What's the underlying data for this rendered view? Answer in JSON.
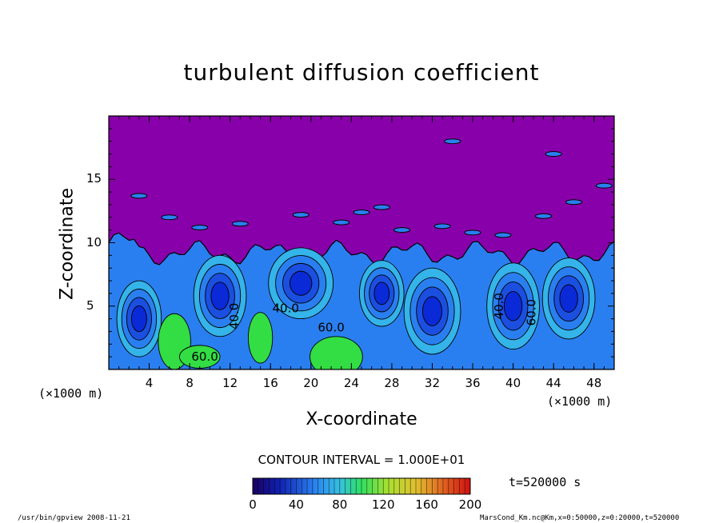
{
  "chart_data": {
    "type": "heatmap",
    "title": "turbulent diffusion coefficient",
    "xlabel": "X-coordinate",
    "ylabel": "Z-coordinate",
    "x_unit": "(×1000 m)",
    "x_unit_right": "(×1000 m)",
    "xlim": [
      0,
      50
    ],
    "ylim": [
      0,
      20
    ],
    "x_ticks": [
      4,
      8,
      12,
      16,
      20,
      24,
      28,
      32,
      36,
      40,
      44,
      48
    ],
    "y_ticks": [
      5,
      10,
      15
    ],
    "contour_interval_text": "CONTOUR INTERVAL = 1.000E+01",
    "colorbar": {
      "min": 0,
      "max": 200,
      "ticks": [
        0,
        40,
        80,
        120,
        160,
        200
      ]
    },
    "contour_labels": [
      {
        "text": "40.0",
        "x": 17.5,
        "z": 4.5,
        "rotate": 0
      },
      {
        "text": "40.0",
        "x": 12.8,
        "z": 4.2,
        "rotate": -90
      },
      {
        "text": "40.0",
        "x": 39.0,
        "z": 5.0,
        "rotate": -90
      },
      {
        "text": "60.0",
        "x": 42.2,
        "z": 4.5,
        "rotate": -90
      },
      {
        "text": "60.0",
        "x": 9.5,
        "z": 0.7,
        "rotate": 0
      },
      {
        "text": "60.0",
        "x": 22.0,
        "z": 3.0,
        "rotate": 0
      }
    ],
    "time_label": "t=520000 s"
  },
  "footer": {
    "left": "/usr/bin/gpview   2008-11-21",
    "right": "MarsCond_Km.nc@Km,x=0:50000,z=0:20000,t=520000"
  },
  "colors": {
    "background_field": "#8800aa",
    "low_blue": "#0a2ad8",
    "mid_blue": "#2a7ff0",
    "cyan": "#34b4e8",
    "green": "#33dd44"
  }
}
